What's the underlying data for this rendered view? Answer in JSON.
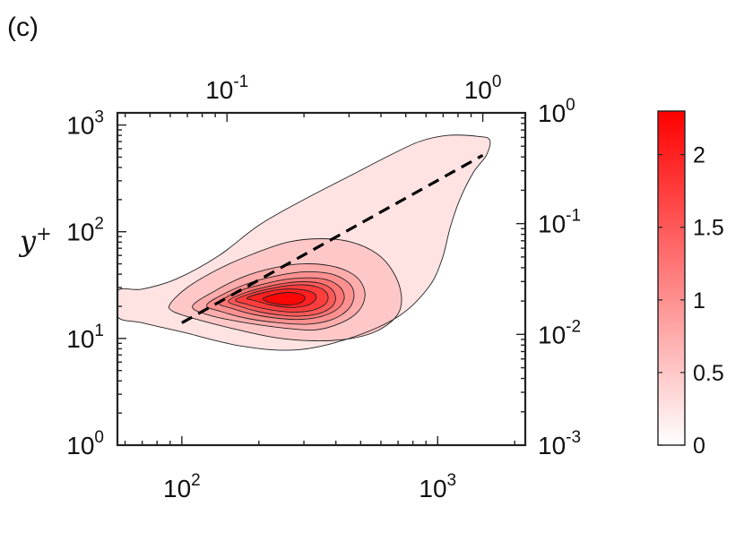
{
  "panel_label": "(c)",
  "chart_data": {
    "type": "contour",
    "title": "",
    "ylabel": "y",
    "ylabel_sup": "+",
    "xlabel": "",
    "x_scale": "log",
    "y_scale": "log",
    "xlim": [
      56,
      2200
    ],
    "ylim": [
      1,
      1300
    ],
    "x_ticks_major": [
      {
        "value": 100,
        "base": "10",
        "exp": "2"
      },
      {
        "value": 1000,
        "base": "10",
        "exp": "3"
      }
    ],
    "y_ticks_major": [
      {
        "value": 1,
        "base": "10",
        "exp": "0"
      },
      {
        "value": 10,
        "base": "10",
        "exp": "1"
      },
      {
        "value": 100,
        "base": "10",
        "exp": "2"
      },
      {
        "value": 1000,
        "base": "10",
        "exp": "3"
      }
    ],
    "top_axis": {
      "scale": "log",
      "lim": [
        0.0373,
        1.466
      ],
      "ticks": [
        {
          "value": 0.1,
          "base": "10",
          "exp": "-1"
        },
        {
          "value": 1,
          "base": "10",
          "exp": "0"
        }
      ]
    },
    "right_axis": {
      "scale": "log",
      "lim": [
        0.001,
        1.0
      ],
      "ticks": [
        {
          "value": 0.001,
          "base": "10",
          "exp": "-3"
        },
        {
          "value": 0.01,
          "base": "10",
          "exp": "-2"
        },
        {
          "value": 0.1,
          "base": "10",
          "exp": "-1"
        },
        {
          "value": 1,
          "base": "10",
          "exp": "0"
        }
      ]
    },
    "contour_levels": [
      0.25,
      0.5,
      0.75,
      1.0,
      1.25,
      1.5,
      1.75,
      2.0,
      2.25
    ],
    "contours": [
      {
        "level": 0.25,
        "points": [
          [
            56,
            28
          ],
          [
            70,
            29
          ],
          [
            95,
            36
          ],
          [
            140,
            60
          ],
          [
            200,
            115
          ],
          [
            300,
            200
          ],
          [
            450,
            330
          ],
          [
            650,
            520
          ],
          [
            850,
            700
          ],
          [
            1100,
            800
          ],
          [
            1450,
            780
          ],
          [
            1600,
            720
          ],
          [
            1550,
            520
          ],
          [
            1380,
            360
          ],
          [
            1220,
            200
          ],
          [
            1120,
            110
          ],
          [
            1040,
            55
          ],
          [
            920,
            30
          ],
          [
            700,
            16
          ],
          [
            450,
            10
          ],
          [
            280,
            7.8
          ],
          [
            170,
            8.5
          ],
          [
            100,
            11.5
          ],
          [
            70,
            14
          ],
          [
            56,
            16
          ]
        ]
      },
      {
        "level": 0.5,
        "points": [
          [
            90,
            21
          ],
          [
            105,
            30
          ],
          [
            140,
            45
          ],
          [
            190,
            62
          ],
          [
            260,
            80
          ],
          [
            350,
            86
          ],
          [
            460,
            80
          ],
          [
            580,
            62
          ],
          [
            670,
            42
          ],
          [
            720,
            26
          ],
          [
            700,
            17
          ],
          [
            590,
            12
          ],
          [
            460,
            10
          ],
          [
            330,
            9.5
          ],
          [
            230,
            10.2
          ],
          [
            155,
            12.5
          ],
          [
            110,
            15.5
          ],
          [
            92,
            18
          ]
        ]
      },
      {
        "level": 0.75,
        "points": [
          [
            110,
            20
          ],
          [
            135,
            28
          ],
          [
            175,
            38
          ],
          [
            230,
            46
          ],
          [
            300,
            50
          ],
          [
            380,
            48
          ],
          [
            450,
            42
          ],
          [
            500,
            34
          ],
          [
            520,
            25
          ],
          [
            490,
            18
          ],
          [
            420,
            14
          ],
          [
            330,
            12
          ],
          [
            245,
            12.6
          ],
          [
            170,
            14.3
          ],
          [
            128,
            16.5
          ]
        ]
      },
      {
        "level": 1.0,
        "points": [
          [
            125,
            20.5
          ],
          [
            150,
            27
          ],
          [
            190,
            34
          ],
          [
            240,
            39
          ],
          [
            300,
            42
          ],
          [
            370,
            41
          ],
          [
            420,
            37
          ],
          [
            460,
            31
          ],
          [
            470,
            24
          ],
          [
            445,
            18.5
          ],
          [
            385,
            15
          ],
          [
            310,
            13.6
          ],
          [
            240,
            14
          ],
          [
            180,
            15.4
          ],
          [
            143,
            17.8
          ]
        ]
      },
      {
        "level": 1.25,
        "points": [
          [
            140,
            21.5
          ],
          [
            165,
            27.5
          ],
          [
            205,
            32
          ],
          [
            250,
            35.5
          ],
          [
            305,
            37
          ],
          [
            360,
            36
          ],
          [
            400,
            32.5
          ],
          [
            425,
            28
          ],
          [
            430,
            23
          ],
          [
            405,
            18.8
          ],
          [
            355,
            16.2
          ],
          [
            295,
            15.1
          ],
          [
            240,
            15.4
          ],
          [
            190,
            16.8
          ],
          [
            158,
            19
          ]
        ]
      },
      {
        "level": 1.5,
        "points": [
          [
            152,
            22.5
          ],
          [
            178,
            27
          ],
          [
            215,
            30.5
          ],
          [
            255,
            33
          ],
          [
            300,
            34
          ],
          [
            345,
            33
          ],
          [
            378,
            30
          ],
          [
            395,
            26.5
          ],
          [
            398,
            22.5
          ],
          [
            380,
            19.2
          ],
          [
            340,
            17
          ],
          [
            290,
            16.2
          ],
          [
            245,
            16.5
          ],
          [
            200,
            17.8
          ],
          [
            168,
            20
          ]
        ]
      },
      {
        "level": 1.75,
        "points": [
          [
            162,
            23
          ],
          [
            190,
            26.8
          ],
          [
            225,
            29.5
          ],
          [
            260,
            31.3
          ],
          [
            298,
            31.8
          ],
          [
            335,
            30.6
          ],
          [
            360,
            28.3
          ],
          [
            372,
            25.3
          ],
          [
            370,
            22.2
          ],
          [
            352,
            19.8
          ],
          [
            318,
            18.2
          ],
          [
            280,
            17.6
          ],
          [
            242,
            18
          ],
          [
            205,
            19.2
          ],
          [
            178,
            21
          ]
        ]
      },
      {
        "level": 2.0,
        "points": [
          [
            180,
            24
          ],
          [
            210,
            27
          ],
          [
            245,
            28.8
          ],
          [
            280,
            29
          ],
          [
            310,
            28
          ],
          [
            330,
            26.2
          ],
          [
            335,
            24
          ],
          [
            326,
            21.8
          ],
          [
            305,
            20.2
          ],
          [
            275,
            19.5
          ],
          [
            245,
            19.8
          ],
          [
            215,
            21
          ],
          [
            193,
            22.6
          ]
        ]
      },
      {
        "level": 2.25,
        "points": [
          [
            208,
            23.8
          ],
          [
            235,
            26.2
          ],
          [
            262,
            27
          ],
          [
            288,
            26.2
          ],
          [
            302,
            24.6
          ],
          [
            300,
            22.6
          ],
          [
            285,
            21.2
          ],
          [
            260,
            20.6
          ],
          [
            235,
            21
          ],
          [
            215,
            22.2
          ]
        ]
      }
    ],
    "dashed_line": {
      "x": [
        100,
        1500
      ],
      "y": [
        14,
        520
      ]
    },
    "colorbar": {
      "range": [
        0,
        2.3
      ],
      "ticks": [
        {
          "value": 0,
          "label": "0"
        },
        {
          "value": 0.5,
          "label": "0.5"
        },
        {
          "value": 1,
          "label": "1"
        },
        {
          "value": 1.5,
          "label": "1.5"
        },
        {
          "value": 2,
          "label": "2"
        }
      ]
    }
  }
}
